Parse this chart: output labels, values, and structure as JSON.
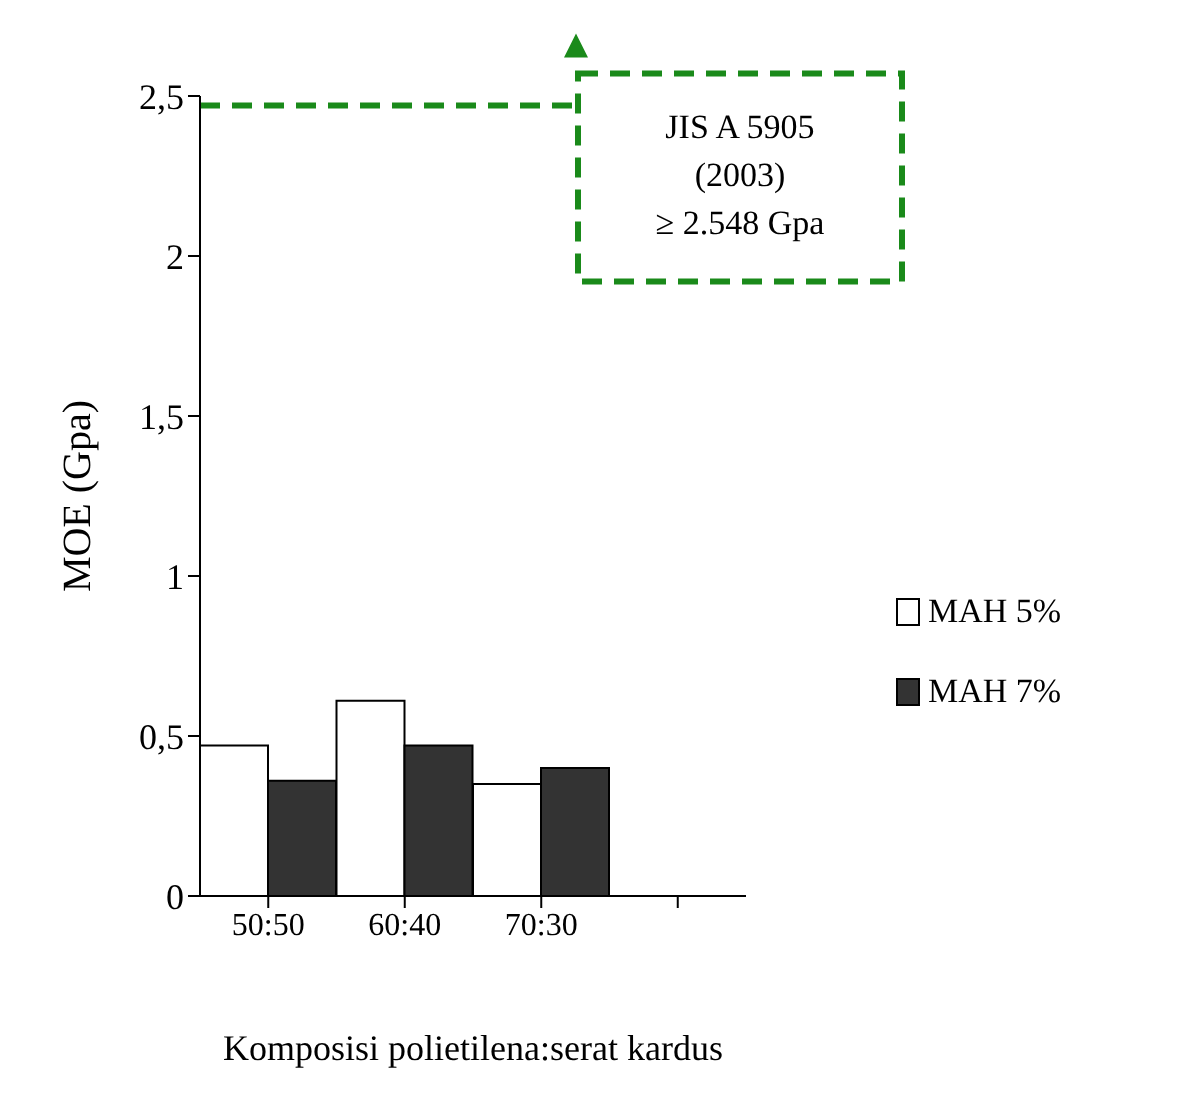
{
  "chart_data": {
    "type": "bar",
    "xlabel": "Komposisi polietilena:serat kardus",
    "ylabel": "MOE  (Gpa)",
    "categories": [
      "50:50",
      "60:40",
      "70:30",
      null
    ],
    "series": [
      {
        "name": "MAH 5%",
        "color": "#ffffff",
        "values": [
          0.47,
          0.61,
          0.35,
          null
        ]
      },
      {
        "name": "MAH 7%",
        "color": "#333333",
        "values": [
          0.36,
          0.47,
          0.4,
          null
        ]
      }
    ],
    "ylim": [
      0,
      2.5
    ],
    "yticks": [
      0,
      {
        "value": 0.5,
        "label": "0,5"
      },
      1,
      {
        "value": 1.5,
        "label": "1,5"
      },
      2,
      {
        "value": 2.5,
        "label": "2,5"
      }
    ],
    "ref_lines": [
      {
        "axis": "y",
        "value": 2.47,
        "label": "JIS A 5905\n(2003)\n≥ 2.548 Gpa",
        "color": "#1a8a1a",
        "line_style": "dashed"
      }
    ],
    "grid": false,
    "legend": "right"
  }
}
